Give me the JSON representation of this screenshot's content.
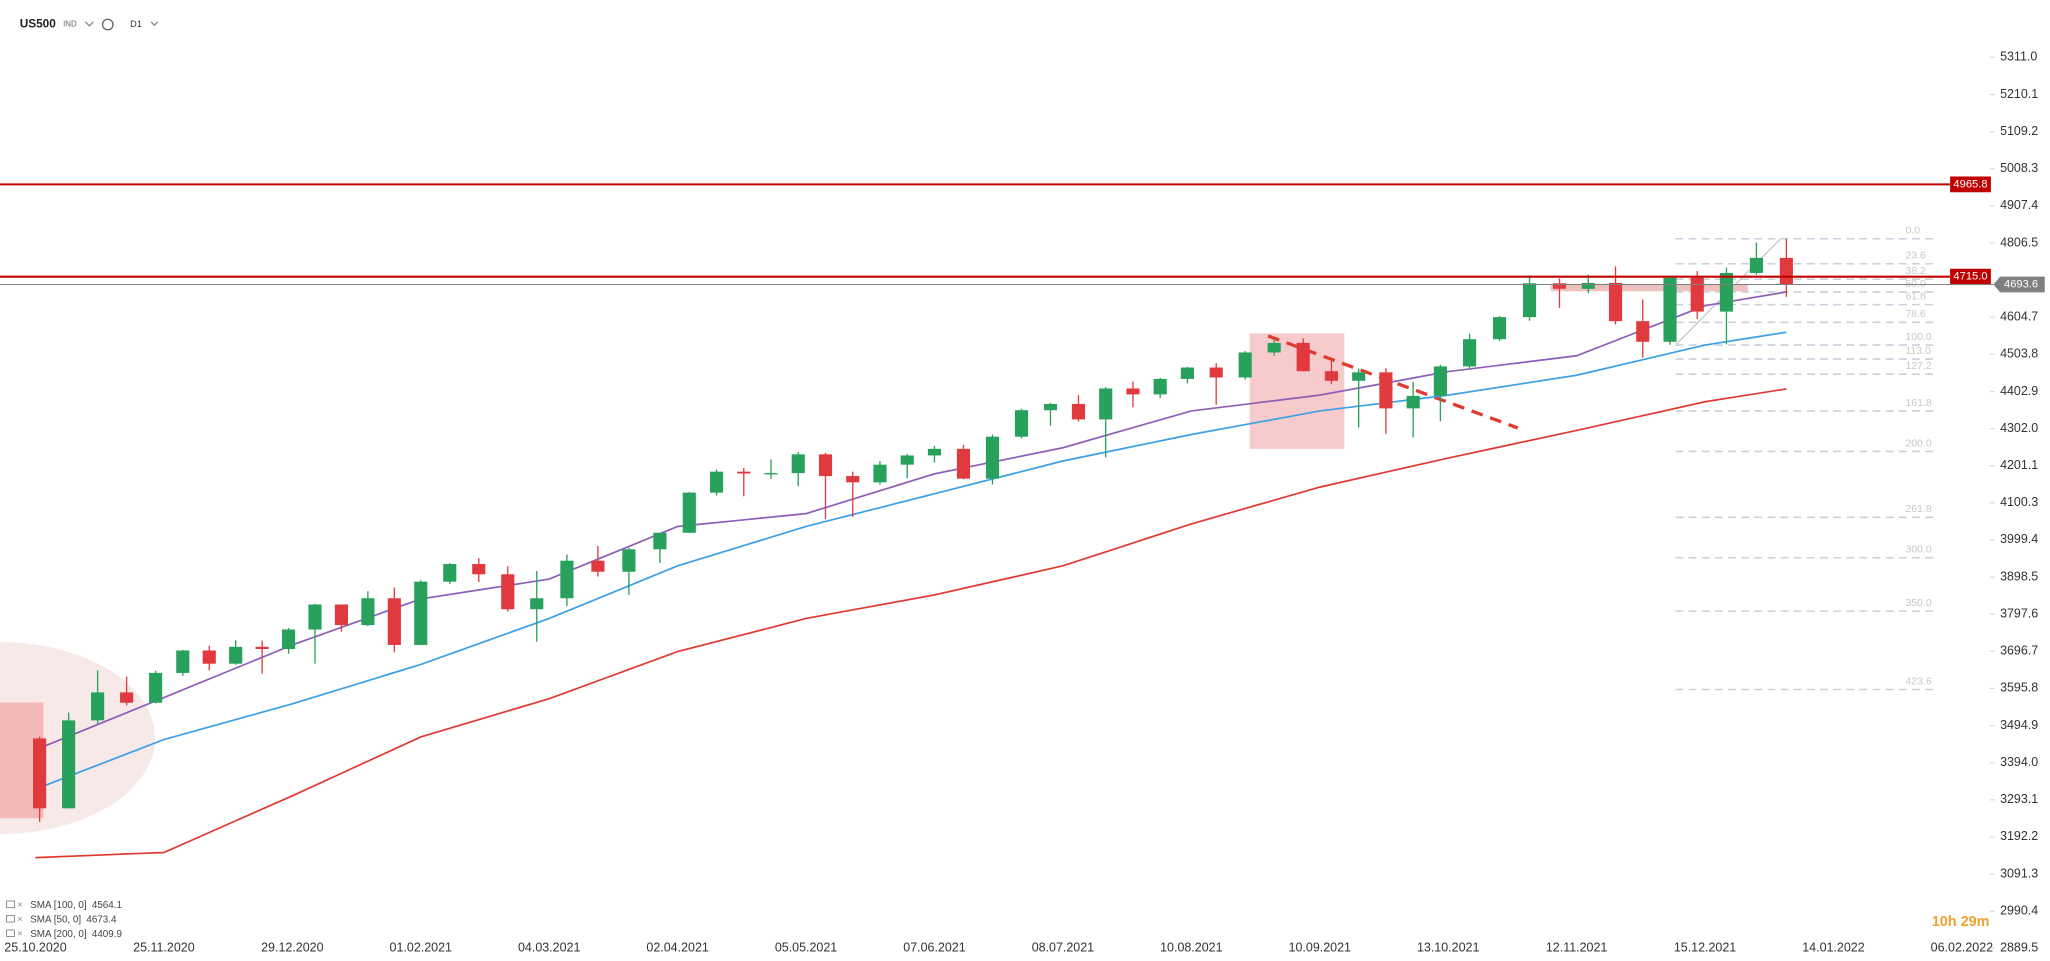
{
  "header": {
    "symbol": "US500",
    "market": "IND",
    "timeframe": "D1"
  },
  "chart_data": {
    "type": "candlestick",
    "x": [
      "26.10.2020",
      "02.11.2020",
      "09.11.2020",
      "16.11.2020",
      "23.11.2020",
      "30.11.2020",
      "07.12.2020",
      "14.12.2020",
      "21.12.2020",
      "28.12.2020",
      "04.01.2021",
      "11.01.2021",
      "18.01.2021",
      "25.01.2021",
      "01.02.2021",
      "08.02.2021",
      "15.02.2021",
      "22.02.2021",
      "01.03.2021",
      "08.03.2021",
      "15.03.2021",
      "22.03.2021",
      "29.03.2021",
      "05.04.2021",
      "12.04.2021",
      "19.04.2021",
      "26.04.2021",
      "03.05.2021",
      "10.05.2021",
      "17.05.2021",
      "24.05.2021",
      "31.05.2021",
      "07.06.2021",
      "14.06.2021",
      "21.06.2021",
      "28.06.2021",
      "05.07.2021",
      "12.07.2021",
      "19.07.2021",
      "26.07.2021",
      "02.08.2021",
      "09.08.2021",
      "16.08.2021",
      "23.08.2021",
      "30.08.2021",
      "06.09.2021",
      "13.09.2021",
      "20.09.2021",
      "27.09.2021",
      "04.10.2021",
      "11.10.2021",
      "18.10.2021",
      "25.10.2021",
      "01.11.2021",
      "08.11.2021",
      "15.11.2021",
      "22.11.2021",
      "29.11.2021",
      "06.12.2021",
      "13.12.2021",
      "20.12.2021",
      "27.12.2021",
      "03.01.2022"
    ],
    "open": [
      3460,
      3270,
      3509,
      3585,
      3557,
      3638,
      3699,
      3663,
      3709,
      3703,
      3756,
      3824,
      3768,
      3841,
      3714,
      3886,
      3934,
      3906,
      3811,
      3841,
      3943,
      3913,
      3974,
      4019,
      4128,
      4185,
      4180,
      4181,
      4232,
      4173,
      4156,
      4204,
      4229,
      4247,
      4166,
      4280,
      4352,
      4369,
      4327,
      4411,
      4395,
      4437,
      4468,
      4441,
      4509,
      4535,
      4458,
      4432,
      4455,
      4357,
      4391,
      4471,
      4545,
      4605,
      4697,
      4682,
      4698,
      4594,
      4538,
      4712,
      4620,
      4725,
      4766
    ],
    "high": [
      3465,
      3530,
      3645,
      3628,
      3644,
      3701,
      3712,
      3727,
      3726,
      3760,
      3826,
      3823,
      3860,
      3870,
      3890,
      3937,
      3950,
      3928,
      3915,
      3960,
      3983,
      3978,
      4020,
      4130,
      4191,
      4195,
      4218,
      4238,
      4236,
      4185,
      4214,
      4233,
      4255,
      4258,
      4286,
      4356,
      4372,
      4393,
      4415,
      4430,
      4440,
      4470,
      4480,
      4513,
      4546,
      4547,
      4486,
      4465,
      4466,
      4429,
      4475,
      4560,
      4608,
      4718,
      4710,
      4720,
      4743,
      4653,
      4715,
      4730,
      4740,
      4808,
      4818
    ],
    "low": [
      3233,
      3270,
      3500,
      3550,
      3555,
      3630,
      3645,
      3660,
      3636,
      3690,
      3663,
      3750,
      3765,
      3694,
      3714,
      3880,
      3885,
      3805,
      3723,
      3820,
      3900,
      3850,
      3937,
      4019,
      4120,
      4118,
      4165,
      4145,
      4056,
      4062,
      4150,
      4167,
      4210,
      4164,
      4150,
      4275,
      4310,
      4321,
      4224,
      4360,
      4385,
      4425,
      4367,
      4435,
      4500,
      4457,
      4423,
      4305,
      4288,
      4278,
      4322,
      4465,
      4540,
      4595,
      4630,
      4670,
      4585,
      4495,
      4530,
      4600,
      4531,
      4720,
      4660
    ],
    "close": [
      3270,
      3509,
      3585,
      3557,
      3638,
      3699,
      3663,
      3709,
      3703,
      3756,
      3824,
      3768,
      3841,
      3714,
      3886,
      3934,
      3906,
      3811,
      3841,
      3943,
      3913,
      3974,
      4019,
      4128,
      4185,
      4180,
      4181,
      4232,
      4173,
      4156,
      4204,
      4229,
      4247,
      4166,
      4280,
      4352,
      4369,
      4327,
      4411,
      4395,
      4437,
      4468,
      4441,
      4509,
      4535,
      4458,
      4432,
      4455,
      4357,
      4391,
      4471,
      4545,
      4605,
      4697,
      4682,
      4698,
      4594,
      4538,
      4712,
      4620,
      4725,
      4766,
      4693.6
    ],
    "colors": {
      "up": "#27a15b",
      "down": "#e0393e"
    },
    "ylim": [
      2889.5,
      5311.0
    ],
    "yticks": [
      {
        "value": 5311,
        "label": "5311.0"
      },
      5210.1,
      5109.2,
      5008.3,
      4907.4,
      4806.5,
      4604.7,
      4503.8,
      4402.9,
      {
        "value": 4302,
        "label": "4302.0"
      },
      4201.1,
      4100.3,
      3999.4,
      3898.5,
      3797.6,
      3696.7,
      3595.8,
      3494.9,
      {
        "value": 3394,
        "label": "3394.0"
      },
      3293.1,
      3192.2,
      3091.3,
      2990.4,
      2889.5
    ],
    "xticks": [
      "25.10.2020",
      "25.11.2020",
      "29.12.2020",
      "01.02.2021",
      "04.03.2021",
      "02.04.2021",
      "05.05.2021",
      "07.06.2021",
      "08.07.2021",
      "10.08.2021",
      "10.09.2021",
      "13.10.2021",
      "12.11.2021",
      "15.12.2021",
      "14.01.2022",
      "06.02.2022"
    ],
    "levels": [
      {
        "value": 4965.8,
        "label": "4965.8",
        "color": "#c00000"
      },
      {
        "value": 4715,
        "label": "4715.0",
        "color": "#c00000"
      }
    ],
    "current": {
      "value": 4693.6,
      "label": "4693.6",
      "color": "#7f7f7f"
    },
    "sma": {
      "x": [
        "25.10.2020",
        "25.11.2020",
        "29.12.2020",
        "01.02.2021",
        "04.03.2021",
        "02.04.2021",
        "05.05.2021",
        "07.06.2021",
        "08.07.2021",
        "10.08.2021",
        "10.09.2021",
        "13.10.2021",
        "12.11.2021",
        "15.12.2021",
        "03.01.2022"
      ],
      "series": [
        {
          "name": "SMA [100, 0]",
          "color": "#3d9fe6",
          "values": [
            3322,
            3457,
            3554,
            3661,
            3786,
            3929,
            4036,
            4125,
            4214,
            4286,
            4350,
            4393,
            4447,
            4529,
            4564.1
          ]
        },
        {
          "name": "SMA [50, 0]",
          "color": "#8e5fb8",
          "values": [
            3429,
            3571,
            3714,
            3839,
            3893,
            4036,
            4071,
            4179,
            4250,
            4350,
            4393,
            4457,
            4500,
            4636,
            4673.4
          ]
        },
        {
          "name": "SMA [200, 0]",
          "color": "#e03a30",
          "values": [
            3136,
            3150,
            3304,
            3464,
            3568,
            3696,
            3786,
            3850,
            3929,
            4043,
            4143,
            4222,
            4297,
            4375,
            4409.9
          ]
        }
      ]
    },
    "fib": [
      {
        "label": "0.0",
        "price": 4818
      },
      {
        "label": "23.6",
        "price": 4750
      },
      {
        "label": "38.2",
        "price": 4708
      },
      {
        "label": "50.0",
        "price": 4673.5
      },
      {
        "label": "61.8",
        "price": 4639
      },
      {
        "label": "78.6",
        "price": 4591
      },
      {
        "label": "100.0",
        "price": 4529
      },
      {
        "label": "113.0",
        "price": 4491
      },
      {
        "label": "127.2",
        "price": 4450
      },
      {
        "label": "161.8",
        "price": 4350
      },
      {
        "label": "200.0",
        "price": 4240
      },
      {
        "label": "261.8",
        "price": 4061
      },
      {
        "label": "300.0",
        "price": 3951
      },
      {
        "label": "350.0",
        "price": 3806
      },
      {
        "label": "423.6",
        "price": 3593
      }
    ],
    "timer": "10h 29m"
  }
}
